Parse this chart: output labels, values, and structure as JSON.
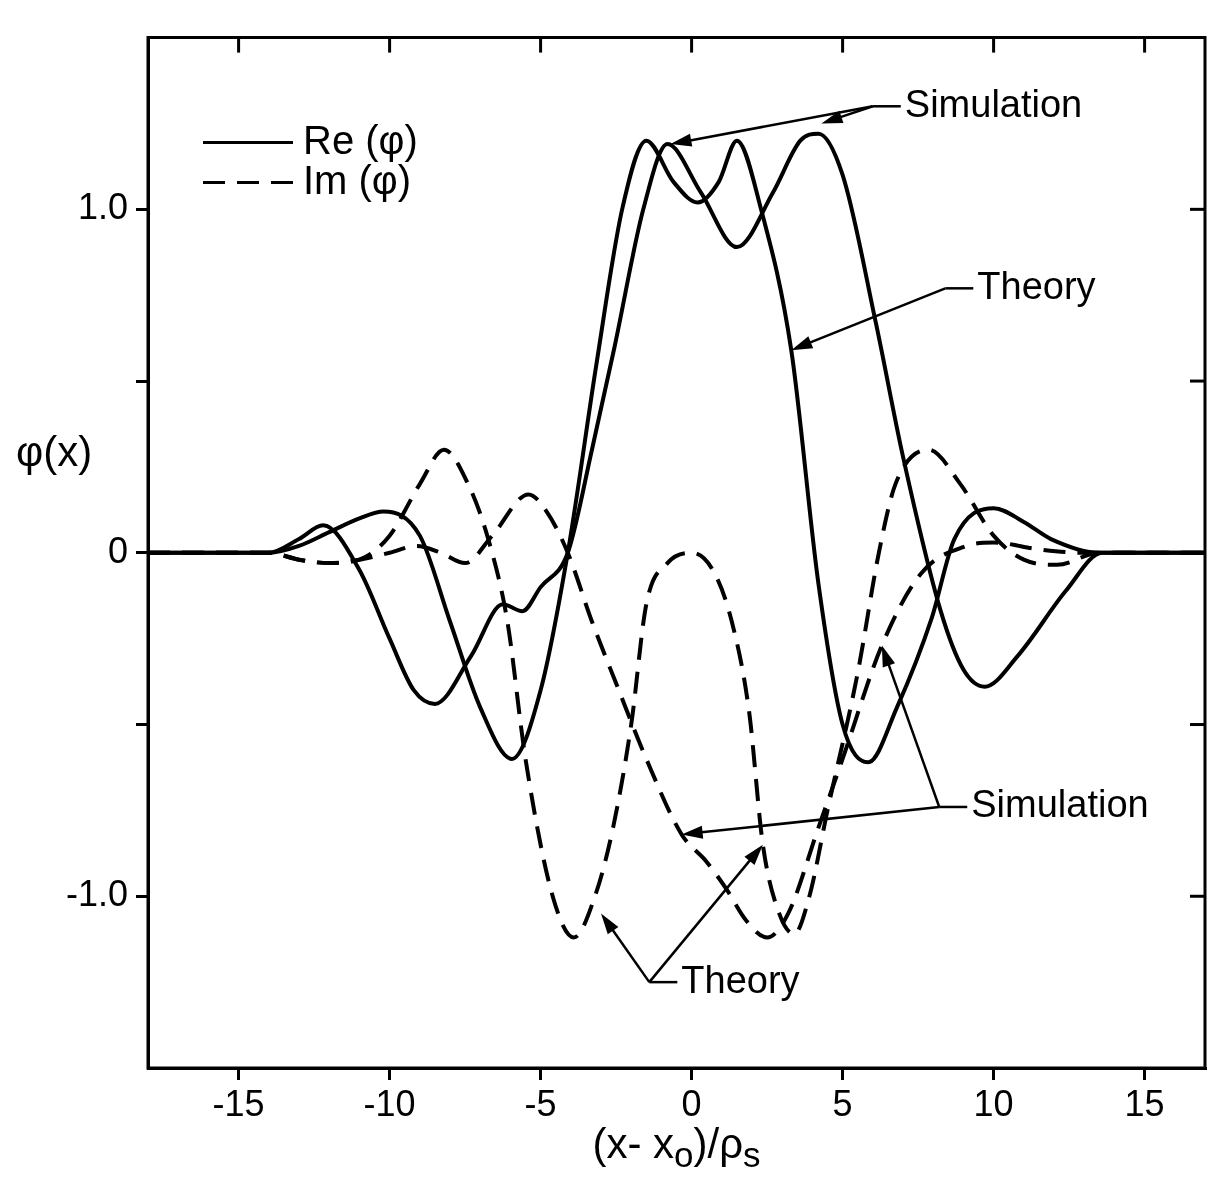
{
  "chart_data": {
    "type": "line",
    "xlabel": "(x- x$_{o}$)/ρ$_{s}$",
    "ylabel": "φ(x)",
    "xlim": [
      -18,
      17
    ],
    "xticks": [
      -15,
      -10,
      -5,
      0,
      5,
      10,
      15
    ],
    "ylim": [
      -1.5,
      1.5
    ],
    "yticks": [
      {
        "value": -1.0,
        "label": "-1.0"
      },
      {
        "value": -0.5,
        "label": null
      },
      0,
      {
        "value": 0.5,
        "label": null
      },
      {
        "value": 1.0,
        "label": "1.0"
      }
    ],
    "legend": "top left",
    "marker": "none",
    "series": [
      {
        "name": "Re (φ)",
        "color": "#000000",
        "line_style": "solid",
        "x": [
          -18,
          -14,
          -13,
          -12,
          -11,
          -10.2,
          -9,
          -8,
          -7,
          -5.95,
          -5,
          -4.1,
          -3.15,
          -2.3,
          -1.5,
          -0.6,
          0.2,
          0.9,
          1.5,
          2.3,
          3.3,
          4.2,
          5.0,
          5.85,
          6.8,
          7.95,
          8.7,
          10.0,
          11.0,
          11.9,
          13.5,
          17
        ],
        "values": [
          0,
          0,
          0.02,
          0.06,
          0.1,
          0.12,
          0.05,
          -0.2,
          -0.45,
          -0.6,
          -0.4,
          0,
          0.55,
          1.0,
          1.2,
          1.08,
          1.02,
          1.08,
          1.2,
          1.0,
          0.59,
          -0.09,
          -0.5,
          -0.61,
          -0.45,
          -0.19,
          0.04,
          0.13,
          0.09,
          0.04,
          0,
          0
        ]
      },
      {
        "color": "#000000",
        "line_style": "solid",
        "x": [
          -18,
          -14,
          -13,
          -12.2,
          -11,
          -10,
          -9.2,
          -8.5,
          -7.3,
          -6.25,
          -5.6,
          -5,
          -4.1,
          -3.3,
          -2.55,
          -1.6,
          -0.8,
          0.3,
          1.5,
          2.7,
          3.6,
          4.2,
          5.0,
          6.1,
          7.0,
          8.25,
          9.0,
          9.7,
          10.8,
          12.4,
          13.6,
          17
        ],
        "values": [
          0,
          0,
          0.04,
          0.08,
          -0.05,
          -0.25,
          -0.4,
          -0.44,
          -0.3,
          -0.15,
          -0.17,
          -0.1,
          0,
          0.3,
          0.6,
          1.0,
          1.19,
          1.05,
          0.89,
          1.05,
          1.2,
          1.22,
          1.1,
          0.67,
          0.28,
          -0.17,
          -0.34,
          -0.39,
          -0.3,
          -0.11,
          0,
          0
        ]
      },
      {
        "name": "Im (φ)",
        "color": "#000000",
        "line_style": "dashed",
        "x": [
          -18,
          -14,
          -13,
          -12,
          -11,
          -10,
          -9,
          -8.2,
          -7.4,
          -6.7,
          -6.1,
          -5.5,
          -4.6,
          -3.9,
          -3.2,
          -2.6,
          -2.0,
          -1.5,
          -0.8,
          0,
          0.7,
          1.33,
          1.9,
          2.36,
          2.9,
          3.4,
          3.9,
          4.5,
          5.5,
          6.2,
          6.75,
          7.85,
          8.9,
          10,
          11,
          12.1,
          13.5,
          17
        ],
        "values": [
          0,
          0,
          -0.02,
          -0.03,
          -0.02,
          0.05,
          0.2,
          0.3,
          0.2,
          0.03,
          -0.2,
          -0.6,
          -1.0,
          -1.12,
          -1.0,
          -0.8,
          -0.5,
          -0.15,
          -0.03,
          0,
          -0.05,
          -0.2,
          -0.46,
          -0.85,
          -1.05,
          -1.11,
          -1.0,
          -0.75,
          -0.35,
          0.0,
          0.2,
          0.3,
          0.2,
          0.05,
          -0.02,
          -0.035,
          0,
          0
        ]
      },
      {
        "color": "#000000",
        "line_style": "dashed",
        "x": [
          -18,
          -14,
          -13,
          -12,
          -11,
          -10,
          -9.1,
          -8.3,
          -7.5,
          -6.6,
          -5.4,
          -4.8,
          -4.1,
          -3.3,
          -2.5,
          -1.5,
          -0.33,
          0.5,
          1.16,
          1.8,
          2.5,
          3.2,
          4.2,
          5.0,
          6.3,
          7.6,
          9.1,
          10,
          11.5,
          13,
          17
        ],
        "values": [
          0,
          0,
          -0.02,
          -0.03,
          -0.02,
          0,
          0.02,
          0,
          -0.03,
          0.05,
          0.17,
          0.12,
          0,
          -0.2,
          -0.38,
          -0.6,
          -0.82,
          -0.9,
          -0.98,
          -1.07,
          -1.12,
          -1.05,
          -0.8,
          -0.6,
          -0.27,
          -0.06,
          0.02,
          0.03,
          0.01,
          0,
          0
        ]
      }
    ],
    "annotations": [
      "Simulation",
      "Theory",
      "Simulation",
      "Theory"
    ]
  }
}
